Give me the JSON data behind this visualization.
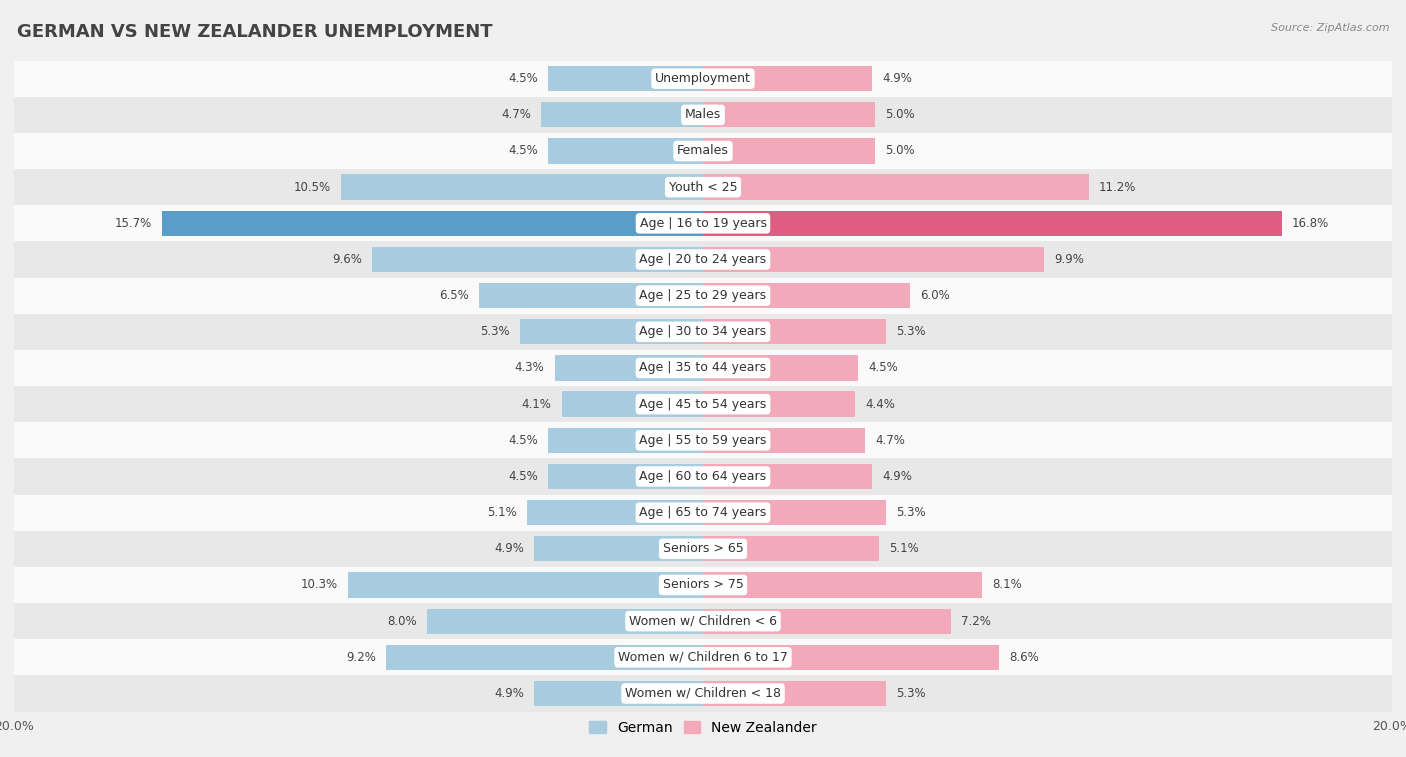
{
  "title": "GERMAN VS NEW ZEALANDER UNEMPLOYMENT",
  "source": "Source: ZipAtlas.com",
  "categories": [
    "Unemployment",
    "Males",
    "Females",
    "Youth < 25",
    "Age | 16 to 19 years",
    "Age | 20 to 24 years",
    "Age | 25 to 29 years",
    "Age | 30 to 34 years",
    "Age | 35 to 44 years",
    "Age | 45 to 54 years",
    "Age | 55 to 59 years",
    "Age | 60 to 64 years",
    "Age | 65 to 74 years",
    "Seniors > 65",
    "Seniors > 75",
    "Women w/ Children < 6",
    "Women w/ Children 6 to 17",
    "Women w/ Children < 18"
  ],
  "german": [
    4.5,
    4.7,
    4.5,
    10.5,
    15.7,
    9.6,
    6.5,
    5.3,
    4.3,
    4.1,
    4.5,
    4.5,
    5.1,
    4.9,
    10.3,
    8.0,
    9.2,
    4.9
  ],
  "new_zealander": [
    4.9,
    5.0,
    5.0,
    11.2,
    16.8,
    9.9,
    6.0,
    5.3,
    4.5,
    4.4,
    4.7,
    4.9,
    5.3,
    5.1,
    8.1,
    7.2,
    8.6,
    5.3
  ],
  "german_color": "#A8CCDF",
  "new_zealander_color": "#F2AABB",
  "highlight_german_color": "#5B9DC9",
  "highlight_nz_color": "#E05C80",
  "background_color": "#F0F0F0",
  "row_color_light": "#FAFAFA",
  "row_color_dark": "#E8E8E8",
  "axis_max": 20.0,
  "legend_german": "German",
  "legend_nz": "New Zealander",
  "title_fontsize": 13,
  "label_fontsize": 9,
  "value_fontsize": 8.5
}
